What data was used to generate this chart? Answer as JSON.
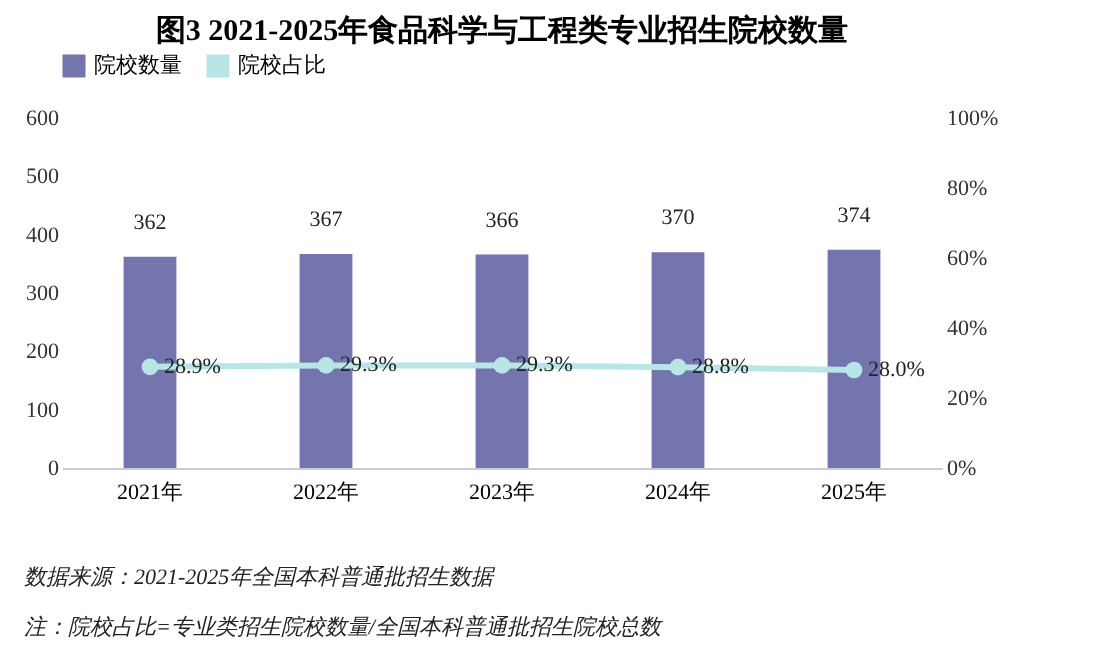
{
  "chart_data": {
    "type": "bar",
    "title": "图3  2021-2025年食品科学与工程类专业招生院校数量",
    "categories": [
      "2021年",
      "2022年",
      "2023年",
      "2024年",
      "2025年"
    ],
    "series": [
      {
        "name": "院校数量",
        "color": "#7475ae",
        "values": [
          362,
          367,
          366,
          370,
          374
        ],
        "value_labels": [
          "362",
          "367",
          "366",
          "370",
          "374"
        ]
      },
      {
        "name": "院校占比",
        "type": "line",
        "axis": "y2",
        "color": "#b8e6e6",
        "values": [
          28.9,
          29.3,
          29.3,
          28.8,
          28.0
        ],
        "value_labels": [
          "28.9%",
          "29.3%",
          "29.3%",
          "28.8%",
          "28.0%"
        ]
      }
    ],
    "ylim": [
      0,
      600
    ],
    "yticks": [
      0,
      100,
      200,
      300,
      400,
      500,
      600
    ],
    "y2lim": [
      0,
      100
    ],
    "y2ticks": [
      {
        "value": 0,
        "label": "0%"
      },
      {
        "value": 20,
        "label": "20%"
      },
      {
        "value": 40,
        "label": "40%"
      },
      {
        "value": 60,
        "label": "60%"
      },
      {
        "value": 80,
        "label": "80%"
      },
      {
        "value": 100,
        "label": "100%"
      }
    ],
    "legend": "top",
    "marker": "circle",
    "line_style": "solid",
    "annotations": [
      "数据来源：2021-2025年全国本科普通批招生数据",
      "注：院校占比=专业类招生院校数量/全国本科普通批招生院校总数"
    ]
  }
}
